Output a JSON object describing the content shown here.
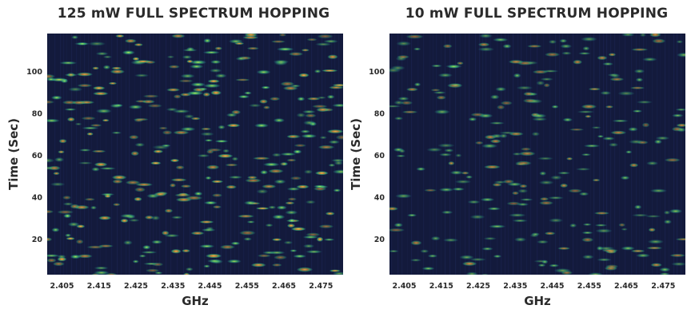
{
  "colors": {
    "background": "#131a3c",
    "stripe": "#1b2450",
    "burst_core": "#f2e14a",
    "burst_hot": "#e8853a",
    "burst_mid": "#46c86a",
    "burst_cool": "#2aa0b8"
  },
  "chart_data": [
    {
      "type": "heatmap",
      "title": "125 mW FULL SPECTRUM HOPPING",
      "xlabel": "GHz",
      "ylabel": "Time (Sec)",
      "x_ticks": [
        "2.405",
        "2.415",
        "2.425",
        "2.435",
        "2.445",
        "2.455",
        "2.465",
        "2.475"
      ],
      "y_ticks": [
        20,
        40,
        60,
        80,
        100
      ],
      "xlim": [
        2.401,
        2.481
      ],
      "ylim": [
        3,
        118
      ],
      "grid": false,
      "burst_density": 6.5,
      "burst_intensity": 1.0,
      "seed": 137
    },
    {
      "type": "heatmap",
      "title": "10 mW FULL SPECTRUM HOPPING",
      "xlabel": "GHz",
      "ylabel": "Time (Sec)",
      "x_ticks": [
        "2.405",
        "2.415",
        "2.425",
        "2.435",
        "2.445",
        "2.455",
        "2.465",
        "2.475"
      ],
      "y_ticks": [
        20,
        40,
        60,
        80,
        100
      ],
      "xlim": [
        2.401,
        2.481
      ],
      "ylim": [
        3,
        118
      ],
      "grid": false,
      "burst_density": 4.5,
      "burst_intensity": 0.62,
      "seed": 911
    }
  ]
}
